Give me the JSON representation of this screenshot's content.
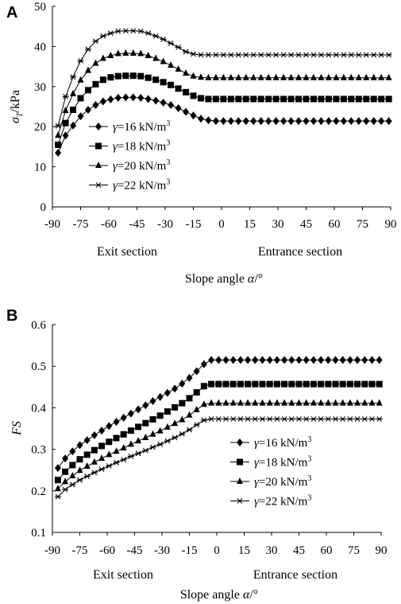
{
  "figure": {
    "panels": [
      {
        "letter": "A",
        "ylabel_symbol": "σ",
        "ylabel_sub": "T",
        "ylabel_unit": "/kPa",
        "section_left": "Exit section",
        "section_right": "Entrance section",
        "xlabel_text": "Slope angle ",
        "xlabel_symbol": "α",
        "xlabel_unit": "/°"
      },
      {
        "letter": "B",
        "ylabel": "FS",
        "section_left": "Exit section",
        "section_right": "Entrance section",
        "xlabel_text": "Slope angle ",
        "xlabel_symbol": "α",
        "xlabel_unit": "/°"
      }
    ]
  },
  "chart_data": [
    {
      "type": "line",
      "panel": "A",
      "xlim": [
        -90,
        90
      ],
      "ylim": [
        0,
        50
      ],
      "xticks": [
        "-90",
        "-75",
        "-60",
        "-45",
        "-30",
        "-15",
        "0",
        "15",
        "30",
        "45",
        "60",
        "75",
        "90"
      ],
      "yticks": [
        "0",
        "10",
        "20",
        "30",
        "40",
        "50"
      ],
      "ytick_values": [
        0,
        10,
        20,
        30,
        40,
        50
      ],
      "legend_position": "left-center",
      "x": [
        -87,
        -83,
        -79,
        -75,
        -71,
        -67,
        -63,
        -59,
        -55,
        -51,
        -47,
        -43,
        -39,
        -35,
        -31,
        -27,
        -23,
        -19,
        -15,
        -11,
        -7,
        -3,
        1,
        5,
        9,
        13,
        17,
        21,
        25,
        29,
        33,
        37,
        41,
        45,
        49,
        53,
        57,
        61,
        65,
        69,
        73,
        77,
        81,
        85,
        89
      ],
      "series": [
        {
          "name_symbol": "γ",
          "name_text": "=16 kN/m",
          "name_sup": "3",
          "marker": "diamond",
          "values": [
            13.5,
            17.8,
            20.3,
            22.6,
            24.2,
            25.4,
            26.3,
            26.8,
            27.2,
            27.3,
            27.3,
            27.2,
            26.9,
            26.5,
            26.0,
            25.4,
            24.6,
            23.7,
            22.8,
            22.0,
            21.6,
            21.4,
            21.4,
            21.4,
            21.4,
            21.4,
            21.4,
            21.4,
            21.4,
            21.4,
            21.4,
            21.4,
            21.4,
            21.4,
            21.4,
            21.4,
            21.4,
            21.4,
            21.4,
            21.4,
            21.4,
            21.4,
            21.4,
            21.4,
            21.4
          ]
        },
        {
          "name_symbol": "γ",
          "name_text": "=18 kN/m",
          "name_sup": "3",
          "marker": "square",
          "values": [
            15.5,
            20.9,
            24.2,
            27.1,
            29.1,
            30.6,
            31.7,
            32.3,
            32.6,
            32.7,
            32.7,
            32.6,
            32.2,
            31.7,
            31.1,
            30.4,
            29.5,
            28.6,
            27.7,
            27.1,
            26.9,
            26.9,
            26.9,
            26.9,
            26.9,
            26.9,
            26.9,
            26.9,
            26.9,
            26.9,
            26.9,
            26.9,
            26.9,
            26.9,
            26.9,
            26.9,
            26.9,
            26.9,
            26.9,
            26.9,
            26.9,
            26.9,
            26.9,
            26.9,
            26.9
          ]
        },
        {
          "name_symbol": "γ",
          "name_text": "=20 kN/m",
          "name_sup": "3",
          "marker": "triangle",
          "values": [
            17.8,
            24.0,
            28.2,
            31.6,
            34.0,
            35.8,
            37.0,
            37.7,
            38.2,
            38.3,
            38.3,
            38.2,
            37.7,
            37.0,
            36.2,
            35.3,
            34.3,
            33.3,
            32.6,
            32.3,
            32.2,
            32.2,
            32.2,
            32.2,
            32.2,
            32.2,
            32.2,
            32.2,
            32.2,
            32.2,
            32.2,
            32.2,
            32.2,
            32.2,
            32.2,
            32.2,
            32.2,
            32.2,
            32.2,
            32.2,
            32.2,
            32.2,
            32.2,
            32.2,
            32.2
          ]
        },
        {
          "name_symbol": "γ",
          "name_text": "=22 kN/m",
          "name_sup": "3",
          "marker": "star",
          "values": [
            20.2,
            27.5,
            32.4,
            36.4,
            39.3,
            41.3,
            42.6,
            43.3,
            43.8,
            43.9,
            43.9,
            43.8,
            43.3,
            42.6,
            41.8,
            40.8,
            39.8,
            38.7,
            38.1,
            37.9,
            37.9,
            37.9,
            37.9,
            37.9,
            37.9,
            37.9,
            37.9,
            37.9,
            37.9,
            37.9,
            37.9,
            37.9,
            37.9,
            37.9,
            37.9,
            37.9,
            37.9,
            37.9,
            37.9,
            37.9,
            37.9,
            37.9,
            37.9,
            37.9,
            37.9
          ]
        }
      ]
    },
    {
      "type": "line",
      "panel": "B",
      "xlim": [
        -90,
        90
      ],
      "ylim": [
        0.1,
        0.6
      ],
      "xticks": [
        "-90",
        "-75",
        "-60",
        "-45",
        "-30",
        "-15",
        "0",
        "15",
        "30",
        "45",
        "60",
        "75",
        "90"
      ],
      "yticks": [
        "0.1",
        "0.2",
        "0.3",
        "0.4",
        "0.5",
        "0.6"
      ],
      "ytick_values": [
        0.1,
        0.2,
        0.3,
        0.4,
        0.5,
        0.6
      ],
      "legend_position": "right-center",
      "x": [
        -87,
        -83,
        -79,
        -75,
        -71,
        -67,
        -63,
        -59,
        -55,
        -51,
        -47,
        -43,
        -39,
        -35,
        -31,
        -27,
        -23,
        -19,
        -15,
        -11,
        -7,
        -3,
        1,
        5,
        9,
        13,
        17,
        21,
        25,
        29,
        33,
        37,
        41,
        45,
        49,
        53,
        57,
        61,
        65,
        69,
        73,
        77,
        81,
        85,
        89
      ],
      "series": [
        {
          "name_symbol": "γ",
          "name_text": "=16 kN/m",
          "name_sup": "3",
          "marker": "diamond",
          "values": [
            0.255,
            0.278,
            0.295,
            0.31,
            0.322,
            0.334,
            0.345,
            0.356,
            0.366,
            0.376,
            0.386,
            0.396,
            0.406,
            0.416,
            0.426,
            0.436,
            0.446,
            0.458,
            0.472,
            0.488,
            0.505,
            0.515,
            0.515,
            0.515,
            0.515,
            0.515,
            0.515,
            0.515,
            0.515,
            0.515,
            0.515,
            0.515,
            0.515,
            0.515,
            0.515,
            0.515,
            0.515,
            0.515,
            0.515,
            0.515,
            0.515,
            0.515,
            0.515,
            0.515,
            0.515
          ]
        },
        {
          "name_symbol": "γ",
          "name_text": "=18 kN/m",
          "name_sup": "3",
          "marker": "square",
          "values": [
            0.226,
            0.246,
            0.262,
            0.276,
            0.287,
            0.298,
            0.308,
            0.318,
            0.327,
            0.336,
            0.345,
            0.354,
            0.363,
            0.372,
            0.381,
            0.391,
            0.401,
            0.411,
            0.423,
            0.437,
            0.452,
            0.457,
            0.457,
            0.457,
            0.457,
            0.457,
            0.457,
            0.457,
            0.457,
            0.457,
            0.457,
            0.457,
            0.457,
            0.457,
            0.457,
            0.457,
            0.457,
            0.457,
            0.457,
            0.457,
            0.457,
            0.457,
            0.457,
            0.457,
            0.457
          ]
        },
        {
          "name_symbol": "γ",
          "name_text": "=20 kN/m",
          "name_sup": "3",
          "marker": "triangle",
          "values": [
            0.205,
            0.222,
            0.236,
            0.249,
            0.259,
            0.269,
            0.278,
            0.287,
            0.295,
            0.303,
            0.312,
            0.32,
            0.328,
            0.336,
            0.344,
            0.353,
            0.362,
            0.371,
            0.382,
            0.395,
            0.408,
            0.411,
            0.411,
            0.411,
            0.411,
            0.411,
            0.411,
            0.411,
            0.411,
            0.411,
            0.411,
            0.411,
            0.411,
            0.411,
            0.411,
            0.411,
            0.411,
            0.411,
            0.411,
            0.411,
            0.411,
            0.411,
            0.411,
            0.411,
            0.411
          ]
        },
        {
          "name_symbol": "γ",
          "name_text": "=22 kN/m",
          "name_sup": "3",
          "marker": "star",
          "values": [
            0.186,
            0.203,
            0.215,
            0.226,
            0.235,
            0.244,
            0.252,
            0.26,
            0.268,
            0.275,
            0.283,
            0.29,
            0.297,
            0.305,
            0.312,
            0.32,
            0.328,
            0.337,
            0.347,
            0.359,
            0.37,
            0.373,
            0.373,
            0.373,
            0.373,
            0.373,
            0.373,
            0.373,
            0.373,
            0.373,
            0.373,
            0.373,
            0.373,
            0.373,
            0.373,
            0.373,
            0.373,
            0.373,
            0.373,
            0.373,
            0.373,
            0.373,
            0.373,
            0.373,
            0.373
          ]
        }
      ]
    }
  ]
}
